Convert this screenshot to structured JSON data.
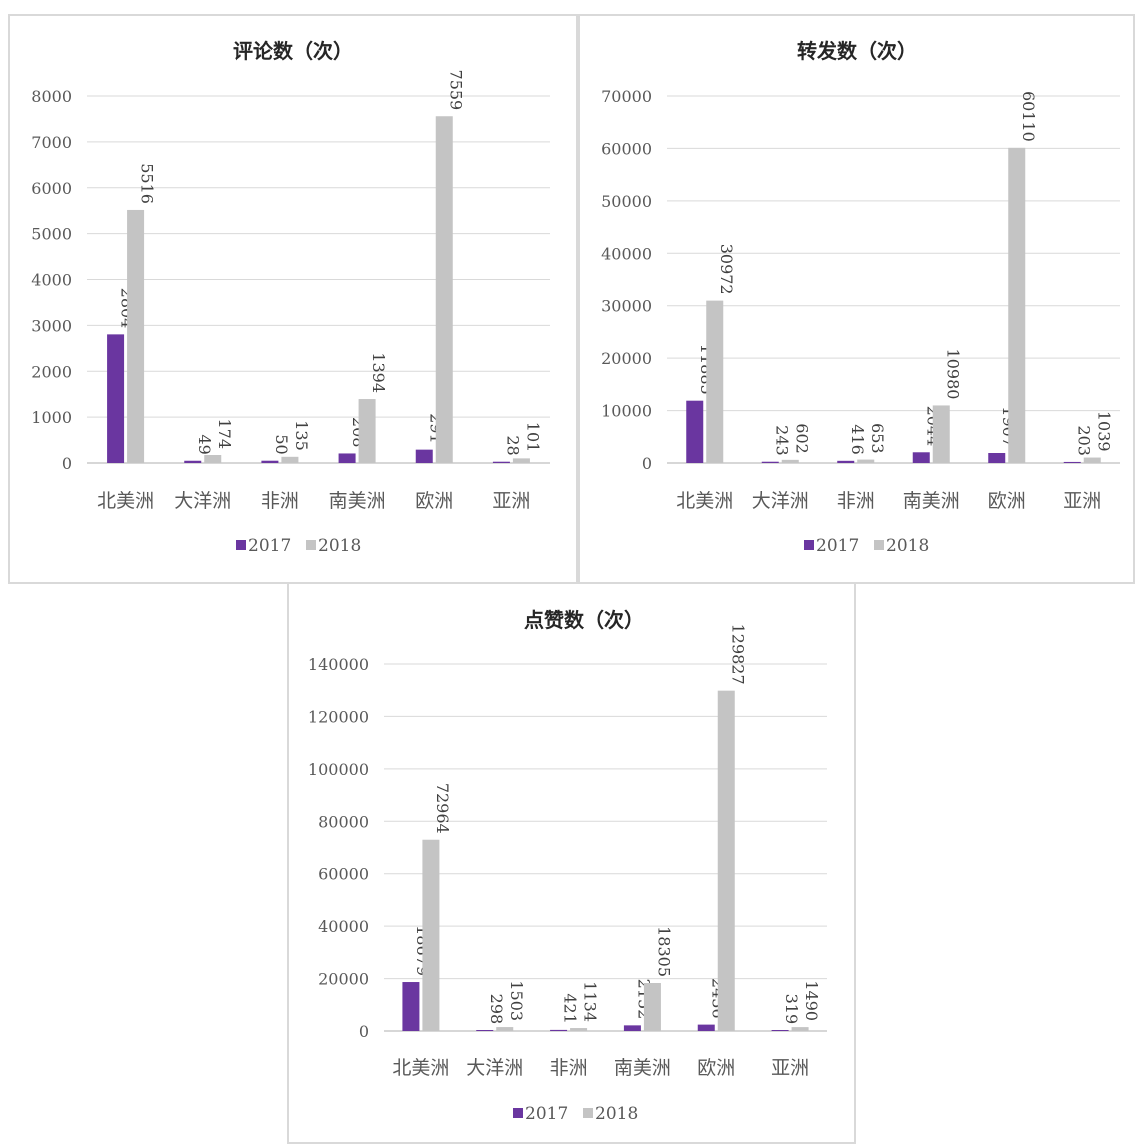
{
  "colors": {
    "s2017": "#6a36a0",
    "s2018": "#c4c4c4",
    "grid": "#d9d9d9",
    "text": "#595959"
  },
  "chart_data": [
    {
      "type": "bar",
      "title": "评论数（次）",
      "categories": [
        "北美洲",
        "大洋洲",
        "非洲",
        "南美洲",
        "欧洲",
        "亚洲"
      ],
      "series": [
        {
          "name": "2017",
          "values": [
            2804,
            49,
            50,
            208,
            291,
            28
          ]
        },
        {
          "name": "2018",
          "values": [
            5516,
            174,
            135,
            1394,
            7559,
            101
          ]
        }
      ],
      "ylim": [
        0,
        8000
      ],
      "yticks": [
        0,
        1000,
        2000,
        3000,
        4000,
        5000,
        6000,
        7000,
        8000
      ],
      "grid": true,
      "legend": "bottom"
    },
    {
      "type": "bar",
      "title": "转发数（次）",
      "categories": [
        "北美洲",
        "大洋洲",
        "非洲",
        "南美洲",
        "欧洲",
        "亚洲"
      ],
      "series": [
        {
          "name": "2017",
          "values": [
            11885,
            243,
            416,
            2044,
            1907,
            203
          ]
        },
        {
          "name": "2018",
          "values": [
            30972,
            602,
            653,
            10980,
            60110,
            1039
          ]
        }
      ],
      "ylim": [
        0,
        70000
      ],
      "yticks": [
        0,
        10000,
        20000,
        30000,
        40000,
        50000,
        60000,
        70000
      ],
      "grid": true,
      "legend": "bottom"
    },
    {
      "type": "bar",
      "title": "点赞数（次）",
      "categories": [
        "北美洲",
        "大洋洲",
        "非洲",
        "南美洲",
        "欧洲",
        "亚洲"
      ],
      "series": [
        {
          "name": "2017",
          "values": [
            18679,
            298,
            421,
            2152,
            2436,
            319
          ]
        },
        {
          "name": "2018",
          "values": [
            72964,
            1503,
            1134,
            18305,
            129827,
            1490
          ]
        }
      ],
      "ylim": [
        0,
        140000
      ],
      "yticks": [
        0,
        20000,
        40000,
        60000,
        80000,
        100000,
        120000,
        140000
      ],
      "grid": true,
      "legend": "bottom"
    }
  ]
}
